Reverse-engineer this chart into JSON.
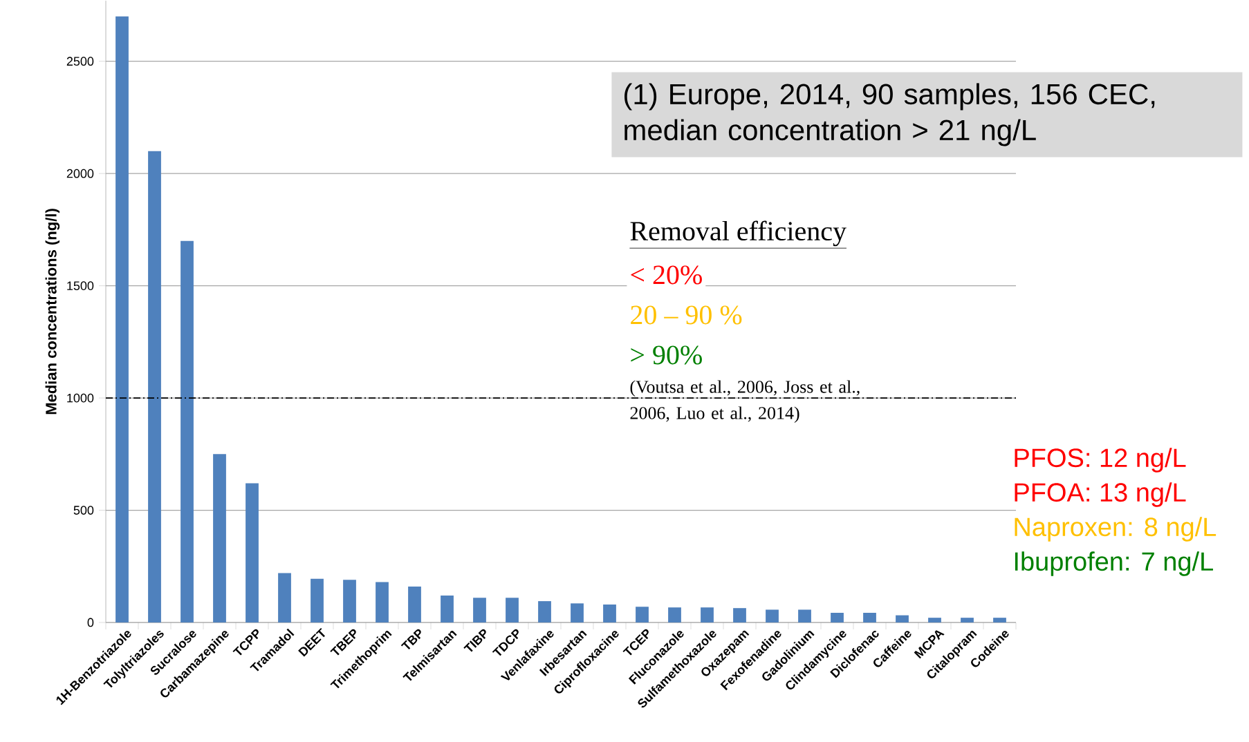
{
  "chart_data": {
    "type": "bar",
    "ylabel": "Median concentrations (ng/l)",
    "categories": [
      "1H-Benzotriazole",
      "Tolyltriazoles",
      "Sucralose",
      "Carbamazepine",
      "TCPP",
      "Tramadol",
      "DEET",
      "TBEP",
      "Trimethoprim",
      "TBP",
      "Telmisartan",
      "TIBP",
      "TDCP",
      "Venlafaxine",
      "Irbesartan",
      "Ciprofloxacine",
      "TCEP",
      "Fluconazole",
      "Sulfamethoxazole",
      "Oxazepam",
      "Fexofenadine",
      "Gadolinium",
      "Clindamycine",
      "Diclofenac",
      "Caffeine",
      "MCPA",
      "Citalopram",
      "Codeine"
    ],
    "values": [
      2700,
      2100,
      1700,
      750,
      620,
      220,
      195,
      190,
      180,
      160,
      120,
      110,
      110,
      95,
      85,
      80,
      70,
      67,
      67,
      64,
      57,
      57,
      43,
      43,
      32,
      21,
      21,
      21
    ],
    "color": "#4f81bd",
    "ylim": [
      0,
      2770
    ],
    "yticks": [
      0,
      500,
      1000,
      1500,
      2000,
      2500
    ],
    "grid": "y",
    "ref_lines": [
      {
        "axis": "y",
        "value": 1000,
        "color": "#000000"
      }
    ],
    "annotations": [
      "(1) Europe, 2014, 90 samples, 156 CEC, median concentration > 21 ng/L",
      "Removal efficiency",
      "< 20%",
      "20 – 90 %",
      "> 90%",
      "(Voutsa et al., 2006, Joss et al., 2006, Luo et al., 2014)",
      "PFOS: 12 ng/L",
      "PFOA: 13 ng/L",
      "Naproxen: 8 ng/L",
      "Ibuprofen: 7 ng/L"
    ]
  }
}
